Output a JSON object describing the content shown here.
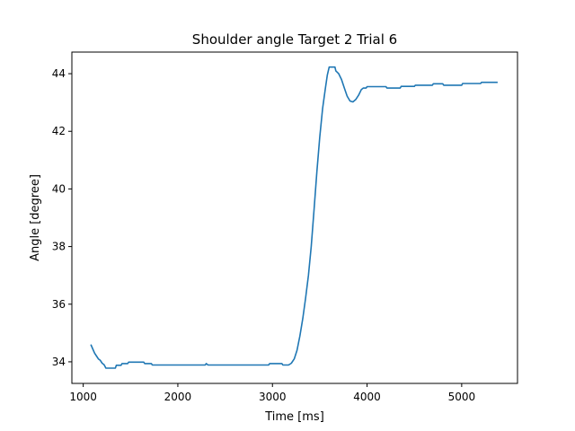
{
  "chart_data": {
    "type": "line",
    "title": "Shoulder angle Target 2 Trial 6",
    "xlabel": "Time [ms]",
    "ylabel": "Angle [degree]",
    "xlim": [
      880,
      5590
    ],
    "ylim": [
      33.25,
      44.75
    ],
    "xticks": [
      1000,
      2000,
      3000,
      4000,
      5000
    ],
    "yticks": [
      34,
      36,
      38,
      40,
      42,
      44
    ],
    "grid": false,
    "line_color": "#1f77b4",
    "series": [
      {
        "points": [
          [
            1080,
            34.6
          ],
          [
            1100,
            34.45
          ],
          [
            1120,
            34.3
          ],
          [
            1140,
            34.2
          ],
          [
            1160,
            34.1
          ],
          [
            1180,
            34.05
          ],
          [
            1200,
            33.95
          ],
          [
            1220,
            33.9
          ],
          [
            1240,
            33.78
          ],
          [
            1280,
            33.78
          ],
          [
            1320,
            33.78
          ],
          [
            1340,
            33.78
          ],
          [
            1350,
            33.88
          ],
          [
            1400,
            33.88
          ],
          [
            1410,
            33.94
          ],
          [
            1470,
            33.94
          ],
          [
            1480,
            33.99
          ],
          [
            1640,
            33.99
          ],
          [
            1650,
            33.94
          ],
          [
            1720,
            33.94
          ],
          [
            1730,
            33.89
          ],
          [
            2290,
            33.89
          ],
          [
            2300,
            33.94
          ],
          [
            2320,
            33.89
          ],
          [
            2960,
            33.89
          ],
          [
            2970,
            33.94
          ],
          [
            3100,
            33.94
          ],
          [
            3110,
            33.89
          ],
          [
            3170,
            33.89
          ],
          [
            3200,
            33.95
          ],
          [
            3230,
            34.1
          ],
          [
            3260,
            34.4
          ],
          [
            3290,
            34.9
          ],
          [
            3320,
            35.5
          ],
          [
            3350,
            36.2
          ],
          [
            3380,
            37.0
          ],
          [
            3410,
            38.0
          ],
          [
            3440,
            39.3
          ],
          [
            3470,
            40.6
          ],
          [
            3500,
            41.8
          ],
          [
            3530,
            42.8
          ],
          [
            3560,
            43.5
          ],
          [
            3580,
            43.95
          ],
          [
            3600,
            44.23
          ],
          [
            3660,
            44.23
          ],
          [
            3670,
            44.1
          ],
          [
            3700,
            44.0
          ],
          [
            3730,
            43.8
          ],
          [
            3760,
            43.5
          ],
          [
            3790,
            43.22
          ],
          [
            3820,
            43.05
          ],
          [
            3850,
            43.02
          ],
          [
            3880,
            43.1
          ],
          [
            3910,
            43.25
          ],
          [
            3940,
            43.45
          ],
          [
            3960,
            43.5
          ],
          [
            3990,
            43.5
          ],
          [
            4000,
            43.55
          ],
          [
            4200,
            43.55
          ],
          [
            4210,
            43.5
          ],
          [
            4350,
            43.5
          ],
          [
            4360,
            43.56
          ],
          [
            4500,
            43.56
          ],
          [
            4510,
            43.6
          ],
          [
            4690,
            43.6
          ],
          [
            4700,
            43.65
          ],
          [
            4800,
            43.65
          ],
          [
            4810,
            43.6
          ],
          [
            5000,
            43.6
          ],
          [
            5010,
            43.66
          ],
          [
            5200,
            43.66
          ],
          [
            5210,
            43.7
          ],
          [
            5380,
            43.7
          ]
        ]
      }
    ]
  }
}
